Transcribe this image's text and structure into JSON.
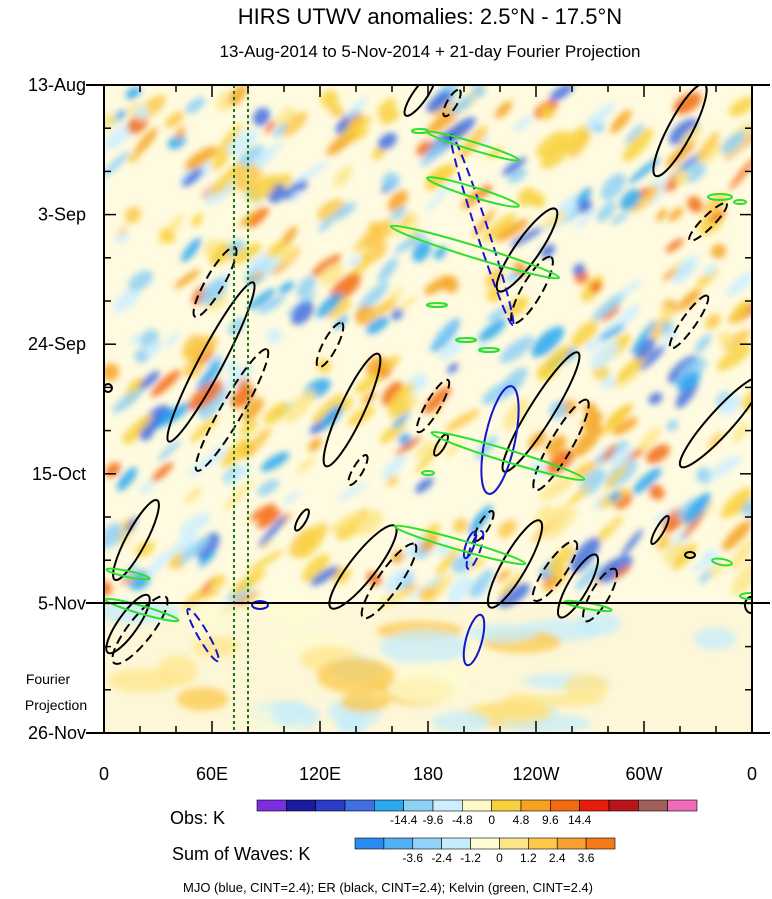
{
  "chart_data": {
    "type": "heatmap",
    "title": "HIRS UTWV anomalies: 2.5°N - 17.5°N",
    "subtitle": "13-Aug-2014 to 5-Nov-2014 + 21-day Fourier Projection",
    "y_axis": {
      "labels": [
        "13-Aug",
        "3-Sep",
        "24-Sep",
        "15-Oct",
        "5-Nov",
        "26-Nov"
      ],
      "days_from_start": [
        0,
        21,
        42,
        63,
        84,
        105
      ],
      "observation_end_label": "5-Nov"
    },
    "x_axis": {
      "labels": [
        "0",
        "60E",
        "120E",
        "180",
        "120W",
        "60W",
        "0"
      ],
      "longitudes": [
        0,
        60,
        120,
        180,
        240,
        300,
        360
      ]
    },
    "fourier_projection_label": [
      "Fourier",
      "Projection"
    ],
    "reference_longitudes_dashed_green": [
      72,
      80
    ],
    "obs_colorbar": {
      "label": "Obs: K",
      "tick_labels": [
        "-14.4",
        "-9.6",
        "-4.8",
        "0",
        "4.8",
        "9.6",
        "14.4"
      ],
      "colors": [
        "#7a2ee0",
        "#1a1a9e",
        "#2a3cc8",
        "#3f6fe0",
        "#2aa8f0",
        "#8fd0f5",
        "#cceeff",
        "#fff9c8",
        "#f8d23e",
        "#f6a21e",
        "#f26a10",
        "#e81c0e",
        "#b8141a",
        "#a0605a",
        "#f06aba"
      ]
    },
    "waves_colorbar": {
      "label": "Sum of Waves: K",
      "tick_labels": [
        "-3.6",
        "-2.4",
        "-1.2",
        "0",
        "1.2",
        "2.4",
        "3.6"
      ],
      "colors": [
        "#2a8cf0",
        "#54b0f4",
        "#90d2f8",
        "#c6ecfb",
        "#fefcd2",
        "#fde68a",
        "#fbc84a",
        "#f8a030",
        "#f47a18"
      ]
    },
    "series_legend": "MJO (blue, CINT=2.4); ER (black, CINT=2.4); Kelvin (green, CINT=2.4)",
    "series": [
      {
        "name": "MJO",
        "color": "#1515d0"
      },
      {
        "name": "ER",
        "color": "#000000"
      },
      {
        "name": "Kelvin",
        "color": "#2ee02e"
      }
    ]
  }
}
